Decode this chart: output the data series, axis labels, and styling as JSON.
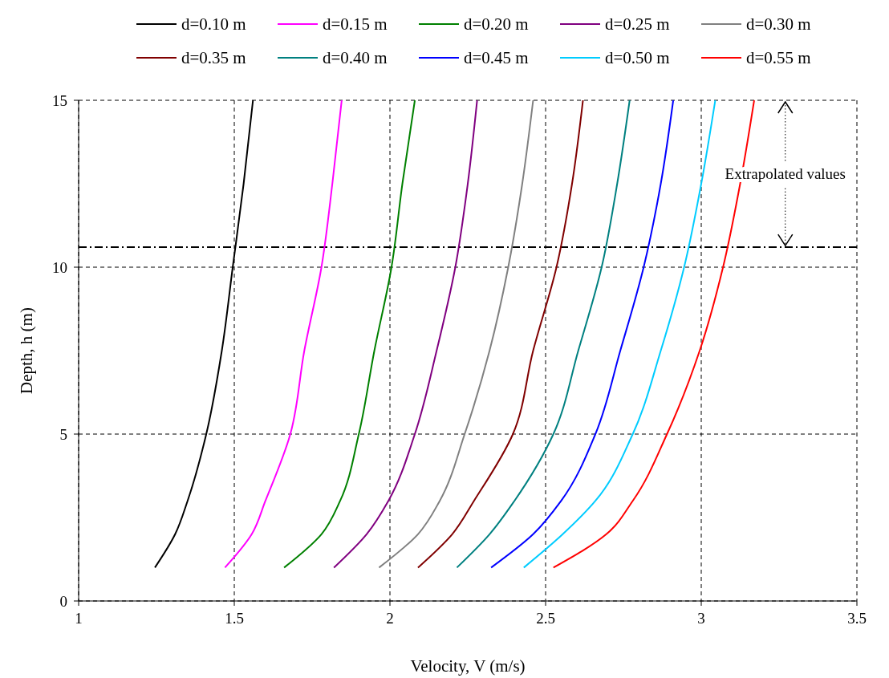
{
  "chart_data": {
    "type": "line",
    "xlabel": "Velocity, V (m/s)",
    "ylabel": "Depth, h (m)",
    "xlim": [
      1,
      3.5
    ],
    "ylim": [
      0,
      15
    ],
    "xticks": [
      1,
      1.5,
      2,
      2.5,
      3,
      3.5
    ],
    "yticks": [
      0,
      5,
      10,
      15
    ],
    "grid": true,
    "legend": "top",
    "line_style": "solid",
    "marker": "none",
    "ref_lines": [
      {
        "axis": "y",
        "value": 10.6,
        "line_style": "dashdot",
        "color": "#000000"
      }
    ],
    "annotations": [
      {
        "text": "Extrapolated values",
        "x": 3.27,
        "y": 10.6
      }
    ],
    "series": [
      {
        "name": "d=0.10 m",
        "color": "#000000",
        "x": [
          1.245,
          1.31,
          1.35,
          1.41,
          1.46,
          1.495,
          1.53,
          1.56
        ],
        "values": [
          1,
          2,
          3,
          5,
          7.5,
          10,
          12.5,
          15
        ]
      },
      {
        "name": "d=0.15 m",
        "color": "#ff00ff",
        "x": [
          1.47,
          1.556,
          1.6,
          1.68,
          1.725,
          1.78,
          1.815,
          1.845
        ],
        "values": [
          1,
          2,
          3,
          5,
          7.5,
          10,
          12.5,
          15
        ]
      },
      {
        "name": "d=0.20 m",
        "color": "#008000",
        "x": [
          1.66,
          1.78,
          1.84,
          1.9,
          1.95,
          2.005,
          2.04,
          2.08
        ],
        "values": [
          1,
          2,
          3,
          5,
          7.5,
          10,
          12.5,
          15
        ]
      },
      {
        "name": "d=0.25 m",
        "color": "#800080",
        "x": [
          1.82,
          1.925,
          1.995,
          2.08,
          2.15,
          2.21,
          2.25,
          2.28
        ],
        "values": [
          1,
          2,
          3,
          5,
          7.5,
          10,
          12.5,
          15
        ]
      },
      {
        "name": "d=0.30 m",
        "color": "#808080",
        "x": [
          1.965,
          2.09,
          2.16,
          2.24,
          2.32,
          2.38,
          2.425,
          2.46
        ],
        "values": [
          1,
          2,
          3,
          5,
          7.5,
          10,
          12.5,
          15
        ]
      },
      {
        "name": "d=0.35 m",
        "color": "#800000",
        "x": [
          2.09,
          2.2,
          2.27,
          2.395,
          2.46,
          2.535,
          2.585,
          2.62
        ],
        "values": [
          1,
          2,
          3,
          5,
          7.5,
          10,
          12.5,
          15
        ]
      },
      {
        "name": "d=0.40 m",
        "color": "#008080",
        "x": [
          2.215,
          2.32,
          2.4,
          2.525,
          2.605,
          2.68,
          2.73,
          2.77
        ],
        "values": [
          1,
          2,
          3,
          5,
          7.5,
          10,
          12.5,
          15
        ]
      },
      {
        "name": "d=0.45 m",
        "color": "#0000ff",
        "x": [
          2.325,
          2.46,
          2.55,
          2.66,
          2.74,
          2.815,
          2.87,
          2.91
        ],
        "values": [
          1,
          2,
          3,
          5,
          7.5,
          10,
          12.5,
          15
        ]
      },
      {
        "name": "d=0.50 m",
        "color": "#00ccff",
        "x": [
          2.43,
          2.555,
          2.66,
          2.78,
          2.87,
          2.945,
          3.0,
          3.045
        ],
        "values": [
          1,
          2,
          3,
          5,
          7.5,
          10,
          12.5,
          15
        ]
      },
      {
        "name": "d=0.55 m",
        "color": "#ff0000",
        "x": [
          2.525,
          2.695,
          2.78,
          2.89,
          2.995,
          3.07,
          3.125,
          3.17
        ],
        "values": [
          1,
          2,
          3,
          5,
          7.5,
          10,
          12.5,
          15
        ]
      }
    ]
  }
}
